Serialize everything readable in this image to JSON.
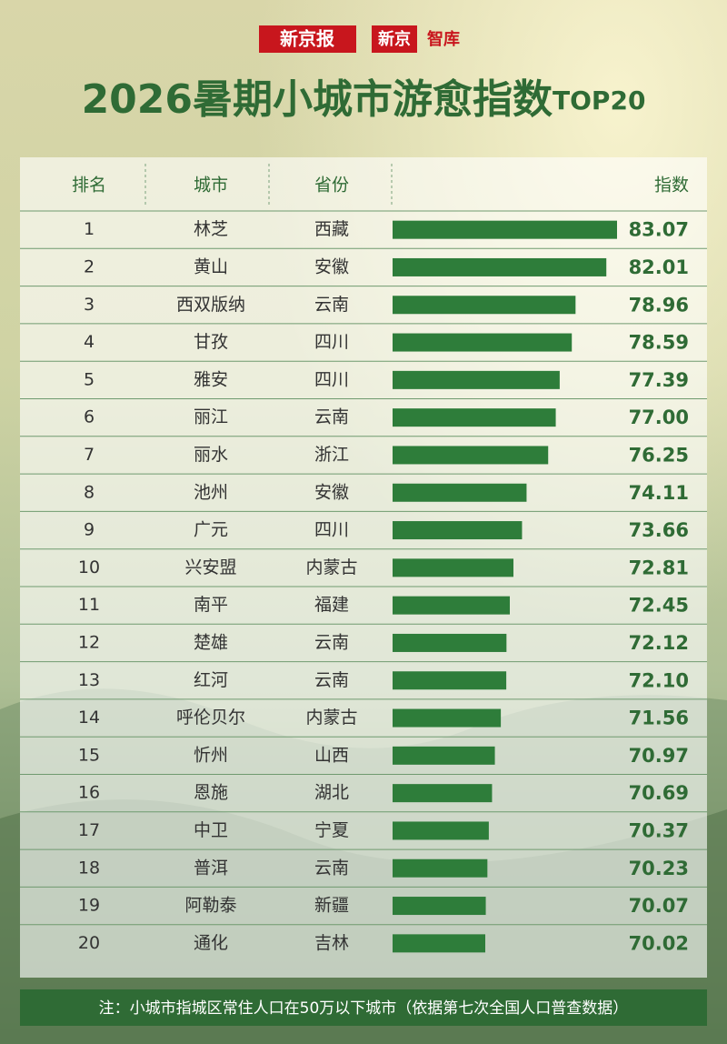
{
  "header": {
    "logos": [
      "新京报",
      "新京",
      "智库"
    ],
    "title": "2026暑期小城市游愈指数",
    "title_suffix": "TOP20"
  },
  "chart_data": {
    "type": "bar",
    "columns": [
      "排名",
      "城市",
      "省份",
      "指数"
    ],
    "ranks": [
      1,
      2,
      3,
      4,
      5,
      6,
      7,
      8,
      9,
      10,
      11,
      12,
      13,
      14,
      15,
      16,
      17,
      18,
      19,
      20
    ],
    "categories": [
      "林芝",
      "黄山",
      "西双版纳",
      "甘孜",
      "雅安",
      "丽江",
      "丽水",
      "池州",
      "广元",
      "兴安盟",
      "南平",
      "楚雄",
      "红河",
      "呼伦贝尔",
      "忻州",
      "恩施",
      "中卫",
      "普洱",
      "阿勒泰",
      "通化"
    ],
    "provinces": [
      "西藏",
      "安徽",
      "云南",
      "四川",
      "四川",
      "云南",
      "浙江",
      "安徽",
      "四川",
      "内蒙古",
      "福建",
      "云南",
      "云南",
      "内蒙古",
      "山西",
      "湖北",
      "宁夏",
      "云南",
      "新疆",
      "吉林"
    ],
    "values": [
      83.07,
      82.01,
      78.96,
      78.59,
      77.39,
      77.0,
      76.25,
      74.11,
      73.66,
      72.81,
      72.45,
      72.12,
      72.1,
      71.56,
      70.97,
      70.69,
      70.37,
      70.23,
      70.07,
      70.02
    ],
    "value_labels": [
      "83.07",
      "82.01",
      "78.96",
      "78.59",
      "77.39",
      "77.00",
      "76.25",
      "74.11",
      "73.66",
      "72.81",
      "72.45",
      "72.12",
      "72.10",
      "71.56",
      "70.97",
      "70.69",
      "70.37",
      "70.23",
      "70.07",
      "70.02"
    ],
    "color": "#2e7d3a"
  },
  "note": "注：小城市指城区常住人口在50万以下城市（依据第七次全国人口普查数据）"
}
